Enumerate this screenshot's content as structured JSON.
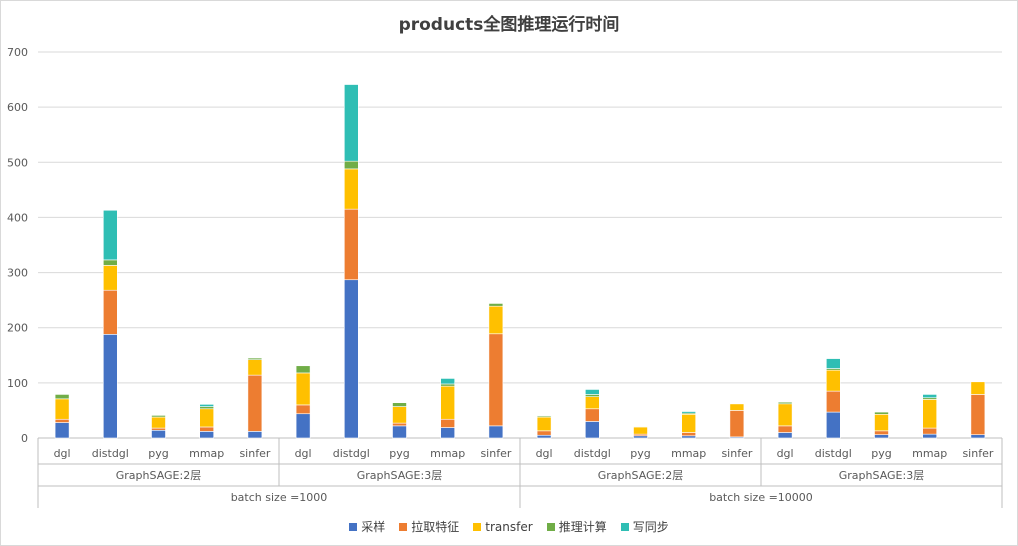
{
  "chart_data": {
    "type": "bar",
    "stacked": true,
    "title": "products全图推理运行时间",
    "xlabel": "",
    "ylabel": "",
    "ylim": [
      0,
      700
    ],
    "yticks": [
      0,
      100,
      200,
      300,
      400,
      500,
      600,
      700
    ],
    "grid": true,
    "legend": "bottom",
    "categories": [
      "dgl",
      "distdgl",
      "pyg",
      "mmap",
      "sinfer",
      "dgl",
      "distdgl",
      "pyg",
      "mmap",
      "sinfer",
      "dgl",
      "distdgl",
      "pyg",
      "mmap",
      "sinfer",
      "dgl",
      "distdgl",
      "pyg",
      "mmap",
      "sinfer"
    ],
    "group_labels": [
      {
        "label": "GraphSAGE:2层",
        "start": 0,
        "end": 4
      },
      {
        "label": "GraphSAGE:3层",
        "start": 5,
        "end": 9
      },
      {
        "label": "GraphSAGE:2层",
        "start": 10,
        "end": 14
      },
      {
        "label": "GraphSAGE:3层",
        "start": 15,
        "end": 19
      }
    ],
    "outer_labels": [
      {
        "label": "batch size =1000",
        "start": 0,
        "end": 9
      },
      {
        "label": "batch size =10000",
        "start": 10,
        "end": 19
      }
    ],
    "series": [
      {
        "name": "采样",
        "color": "#4472C4",
        "values": [
          28,
          188,
          14,
          12,
          12,
          44,
          287,
          22,
          19,
          22,
          5,
          30,
          4,
          4,
          2,
          10,
          47,
          6,
          7,
          6
        ]
      },
      {
        "name": "拉取特征",
        "color": "#ED7D31",
        "values": [
          6,
          80,
          4,
          8,
          102,
          16,
          128,
          5,
          15,
          167,
          8,
          23,
          3,
          6,
          48,
          12,
          38,
          7,
          11,
          73
        ]
      },
      {
        "name": "transfer",
        "color": "#FFC000",
        "values": [
          37,
          45,
          20,
          33,
          28,
          58,
          73,
          30,
          60,
          50,
          25,
          22,
          13,
          33,
          12,
          40,
          38,
          30,
          52,
          23
        ]
      },
      {
        "name": "推理计算",
        "color": "#70AD47",
        "values": [
          8,
          10,
          3,
          4,
          3,
          13,
          14,
          7,
          4,
          5,
          2,
          4,
          1,
          2,
          1,
          3,
          3,
          4,
          3,
          1
        ]
      },
      {
        "name": "写同步",
        "color": "#2FBEB4",
        "values": [
          0,
          90,
          0,
          4,
          0,
          0,
          139,
          0,
          10,
          0,
          0,
          9,
          0,
          3,
          0,
          0,
          18,
          0,
          6,
          0
        ]
      }
    ]
  }
}
